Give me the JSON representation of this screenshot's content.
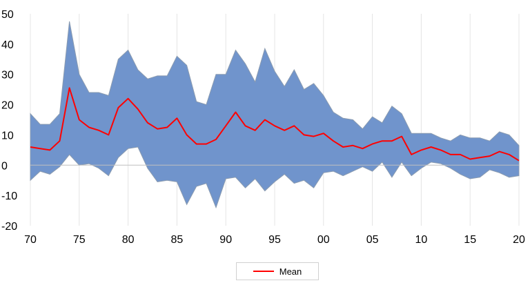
{
  "chart_data": {
    "type": "area",
    "x": [
      1970,
      1971,
      1972,
      1973,
      1974,
      1975,
      1976,
      1977,
      1978,
      1979,
      1980,
      1981,
      1982,
      1983,
      1984,
      1985,
      1986,
      1987,
      1988,
      1989,
      1990,
      1991,
      1992,
      1993,
      1994,
      1995,
      1996,
      1997,
      1998,
      1999,
      2000,
      2001,
      2002,
      2003,
      2004,
      2005,
      2006,
      2007,
      2008,
      2009,
      2010,
      2011,
      2012,
      2013,
      2014,
      2015,
      2016,
      2017,
      2018,
      2019,
      2020
    ],
    "series": [
      {
        "name": "Mean",
        "role": "line",
        "color": "#ff0000",
        "values": [
          6,
          5.5,
          5,
          8,
          25.5,
          15,
          12.5,
          11.5,
          10,
          19,
          22,
          18.5,
          14,
          12,
          12.5,
          15.5,
          10,
          7,
          7,
          8.5,
          13,
          17.5,
          13,
          11.5,
          15,
          13,
          11.5,
          13,
          10,
          9.5,
          10.5,
          8,
          6,
          6.5,
          5.5,
          7,
          8,
          8,
          9.5,
          3.5,
          5,
          6,
          5,
          3.5,
          3.5,
          2,
          2.5,
          3,
          4.5,
          3.5,
          1.5
        ]
      },
      {
        "role": "band_upper",
        "color": "#7094cc",
        "values": [
          17,
          13.5,
          13.5,
          17,
          47.5,
          30,
          24,
          24,
          23,
          35,
          38,
          31.5,
          28.5,
          29.5,
          29.5,
          36,
          33,
          21,
          20,
          30,
          30,
          38,
          33.5,
          27.5,
          38.5,
          31,
          26,
          31.5,
          25,
          27,
          23,
          17.5,
          15.5,
          15,
          12,
          16,
          14,
          19.5,
          17,
          10.5,
          10.5,
          10.5,
          9,
          8,
          10,
          9,
          9,
          8,
          11,
          10,
          6.5
        ]
      },
      {
        "role": "band_lower",
        "color": "#7094cc",
        "values": [
          -5,
          -2,
          -3,
          -0.5,
          3.5,
          0,
          0.5,
          -1,
          -3.5,
          2.5,
          5.5,
          6,
          -1,
          -5.5,
          -5,
          -5.5,
          -13,
          -7,
          -6,
          -14,
          -4.5,
          -4,
          -7.5,
          -4.5,
          -8.5,
          -5.5,
          -3,
          -6,
          -5,
          -7.5,
          -2.5,
          -2,
          -3.5,
          -2,
          -0.5,
          -2,
          1,
          -4,
          1,
          -3.5,
          -1,
          1,
          0.5,
          -1,
          -3,
          -4.5,
          -4,
          -1.5,
          -2.5,
          -4,
          -3.5
        ]
      }
    ],
    "xlim": [
      1970,
      2020
    ],
    "ylim": [
      -20,
      50
    ],
    "xticks": [
      1970,
      1975,
      1980,
      1985,
      1990,
      1995,
      2000,
      2005,
      2010,
      2015,
      2020
    ],
    "xtick_labels": [
      "70",
      "75",
      "80",
      "85",
      "90",
      "95",
      "00",
      "05",
      "10",
      "15",
      "20"
    ],
    "yticks": [
      -20,
      -10,
      0,
      10,
      20,
      30,
      40,
      50
    ],
    "ytick_labels": [
      "-20",
      "-10",
      "0",
      "10",
      "20",
      "30",
      "40",
      "50"
    ],
    "grid": "vertical",
    "legend_position": "bottom-center",
    "legend_label": "Mean",
    "band_color": "#7094cc",
    "band_edge_color": "#8a9bb0",
    "mean_color": "#ff0000",
    "zero_line_color": "#bfbfbf"
  }
}
